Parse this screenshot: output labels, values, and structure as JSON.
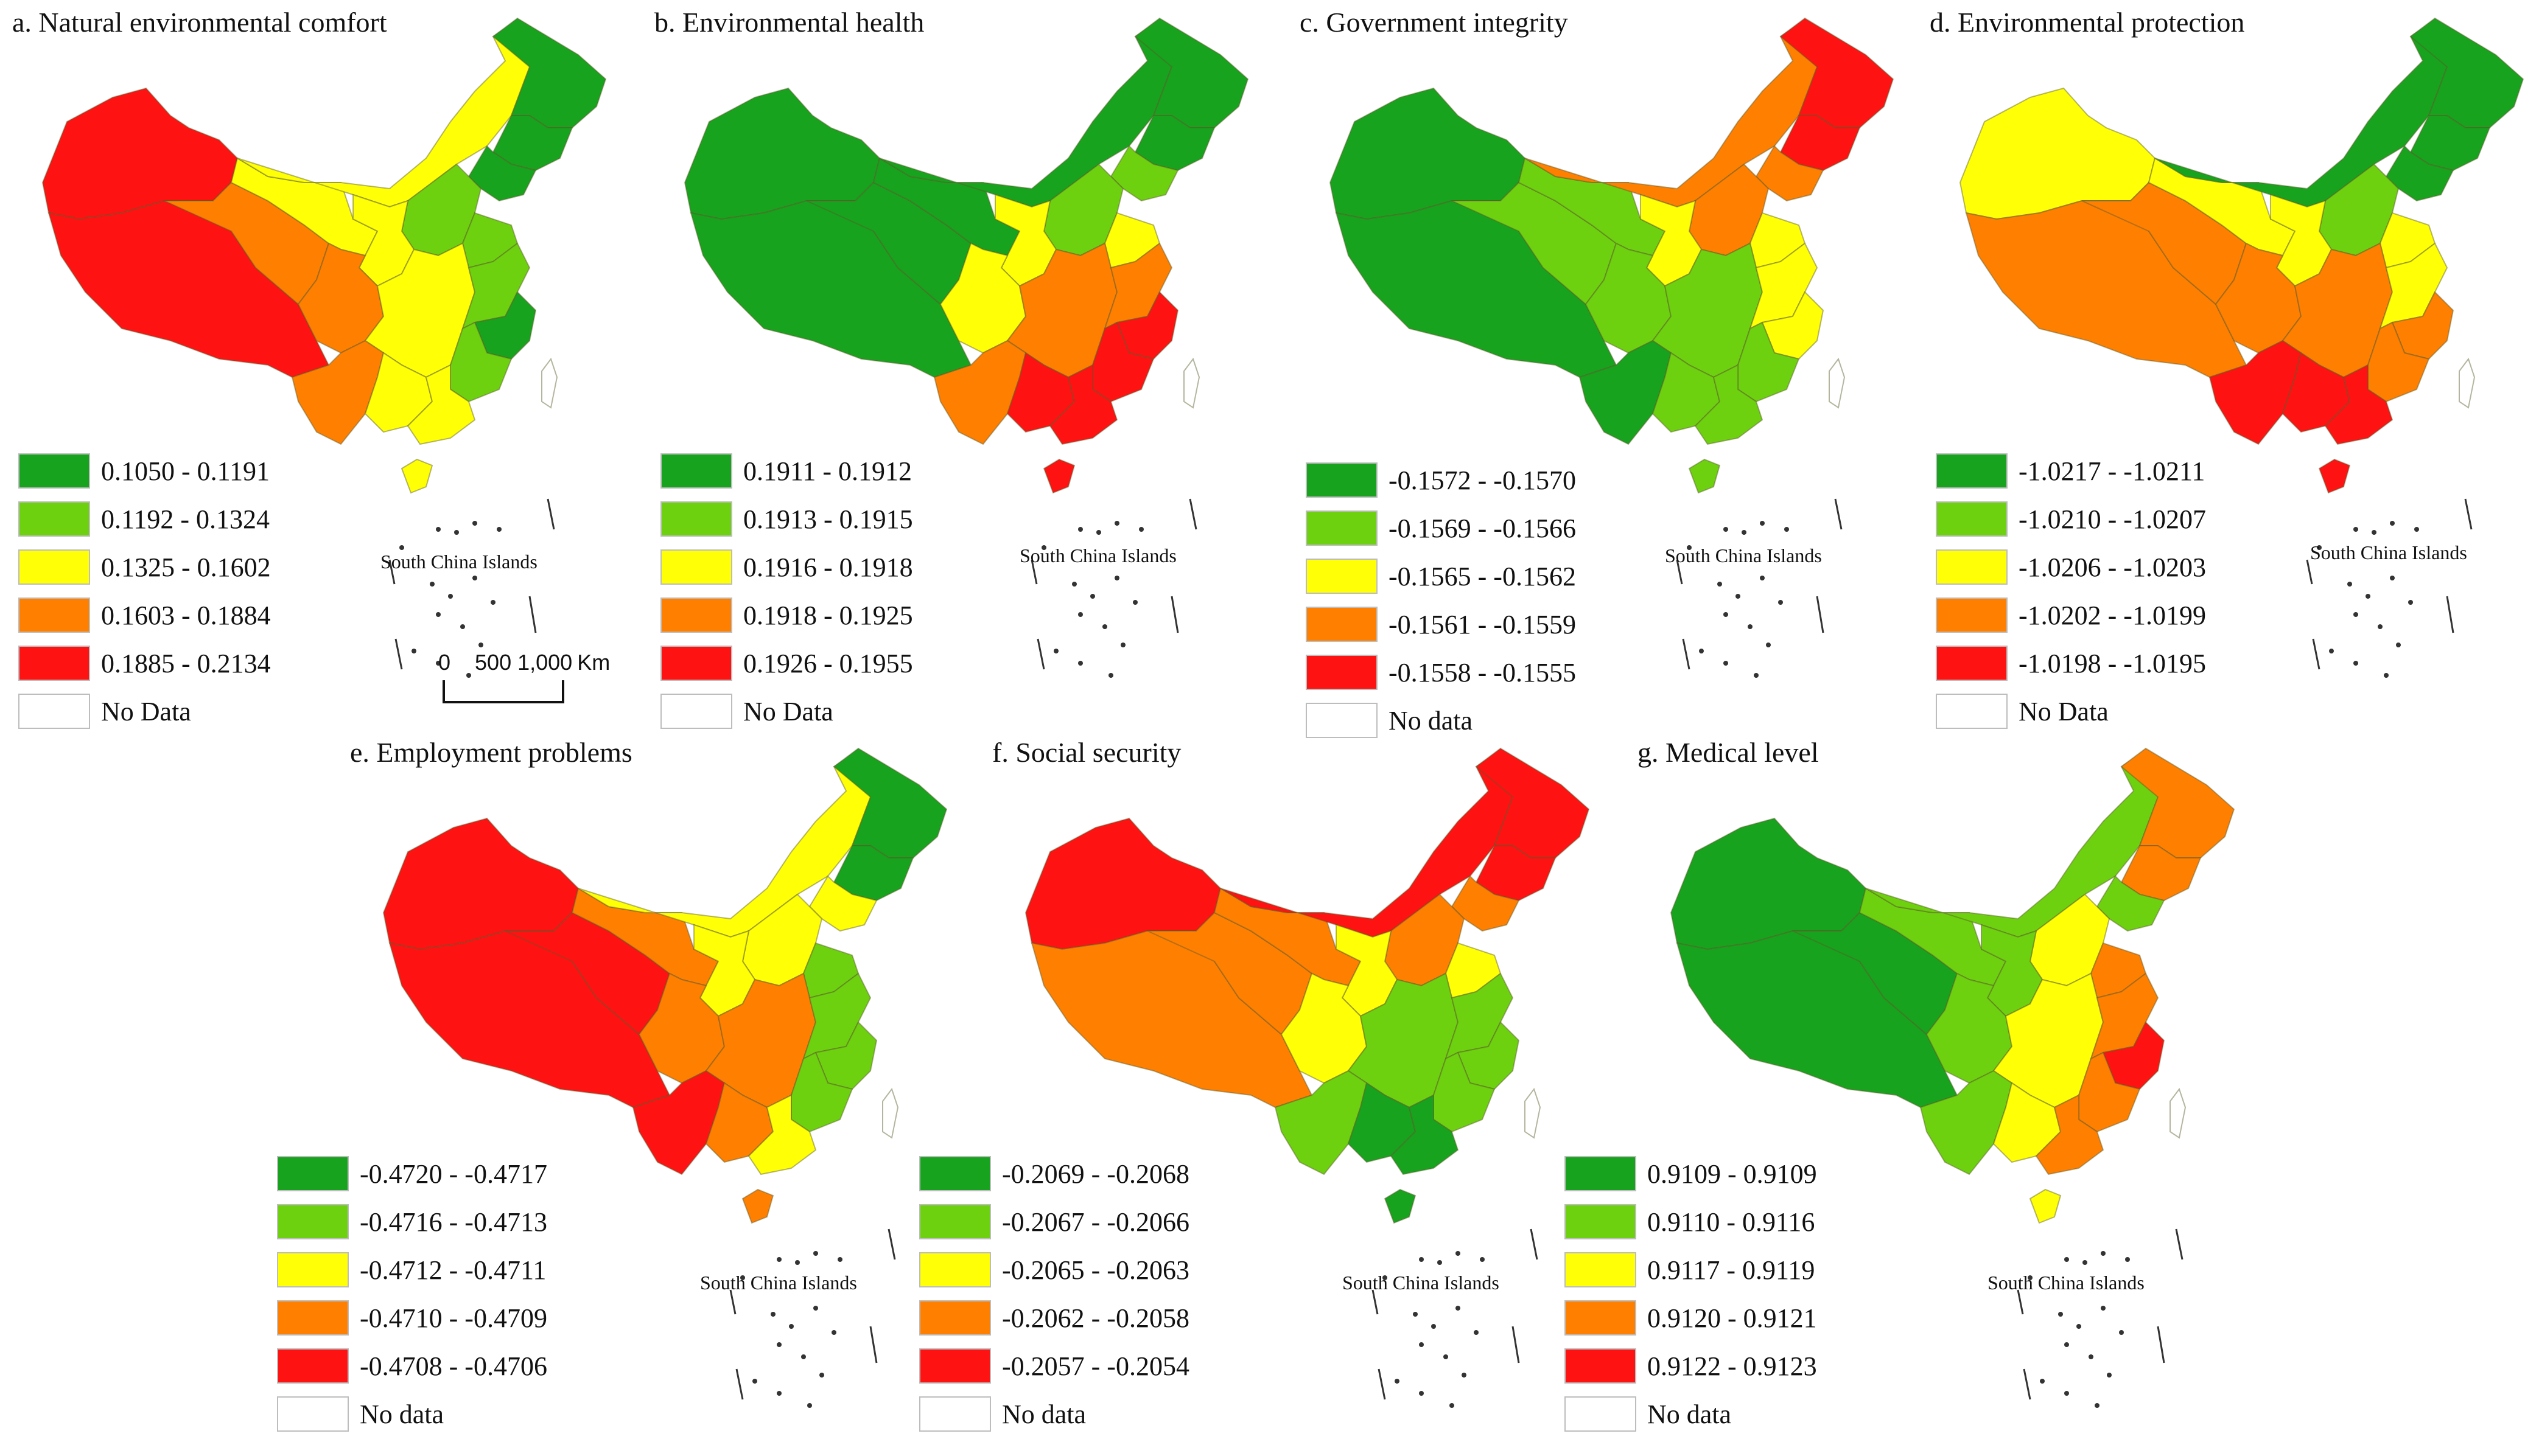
{
  "colors": {
    "dark_green": "#17a31d",
    "light_green": "#6dd10f",
    "yellow": "#ffff05",
    "orange": "#ff7f00",
    "red": "#ff1212",
    "no_data": "#ffffff",
    "boundary": "#5a5a2a"
  },
  "scale_bar": {
    "label_0": "0",
    "label_mid": "500 1,000",
    "unit": "Km"
  },
  "maps": [
    {
      "title": "a. Natural environmental comfort",
      "islands_label": "South China Islands",
      "legend": [
        {
          "label": "0.1050 - 0.1191",
          "color": "dark_green"
        },
        {
          "label": "0.1192 - 0.1324",
          "color": "light_green"
        },
        {
          "label": "0.1325 - 0.1602",
          "color": "yellow"
        },
        {
          "label": "0.1603 - 0.1884",
          "color": "orange"
        },
        {
          "label": "0.1885 - 0.2134",
          "color": "red"
        },
        {
          "label": "No Data",
          "color": "no_data"
        }
      ],
      "regions": {
        "xinjiang": "red",
        "tibet": "red",
        "qinghai": "orange",
        "gansu": "yellow",
        "inner_mongolia": "yellow",
        "heilongjiang": "dark_green",
        "jilin": "dark_green",
        "liaoning": "dark_green",
        "north_china": "light_green",
        "central_north": "yellow",
        "shandong": "light_green",
        "sichuan": "orange",
        "central": "yellow",
        "east_coast": "light_green",
        "zhejiang": "dark_green",
        "fujian": "light_green",
        "yunnan": "orange",
        "guangxi": "yellow",
        "guangdong": "yellow",
        "taiwan": "no_data",
        "hainan": "yellow"
      }
    },
    {
      "title": "b. Environmental health",
      "islands_label": "South China Islands",
      "legend": [
        {
          "label": "0.1911 - 0.1912",
          "color": "dark_green"
        },
        {
          "label": "0.1913 - 0.1915",
          "color": "light_green"
        },
        {
          "label": "0.1916 - 0.1918",
          "color": "yellow"
        },
        {
          "label": "0.1918 - 0.1925",
          "color": "orange"
        },
        {
          "label": "0.1926 - 0.1955",
          "color": "red"
        },
        {
          "label": "No Data",
          "color": "no_data"
        }
      ],
      "regions": {
        "xinjiang": "dark_green",
        "tibet": "dark_green",
        "qinghai": "dark_green",
        "gansu": "dark_green",
        "inner_mongolia": "dark_green",
        "heilongjiang": "dark_green",
        "jilin": "dark_green",
        "liaoning": "light_green",
        "north_china": "light_green",
        "central_north": "yellow",
        "shandong": "yellow",
        "sichuan": "yellow",
        "central": "orange",
        "east_coast": "orange",
        "zhejiang": "red",
        "fujian": "red",
        "yunnan": "orange",
        "guangxi": "red",
        "guangdong": "red",
        "taiwan": "no_data",
        "hainan": "red"
      }
    },
    {
      "title": "c. Government integrity",
      "islands_label": "South China Islands",
      "legend": [
        {
          "label": "-0.1572 - -0.1570",
          "color": "dark_green"
        },
        {
          "label": "-0.1569 - -0.1566",
          "color": "light_green"
        },
        {
          "label": "-0.1565 - -0.1562",
          "color": "yellow"
        },
        {
          "label": "-0.1561 - -0.1559",
          "color": "orange"
        },
        {
          "label": "-0.1558 - -0.1555",
          "color": "red"
        },
        {
          "label": "No data",
          "color": "no_data"
        }
      ],
      "regions": {
        "xinjiang": "dark_green",
        "tibet": "dark_green",
        "qinghai": "light_green",
        "gansu": "light_green",
        "inner_mongolia": "orange",
        "heilongjiang": "red",
        "jilin": "red",
        "liaoning": "orange",
        "north_china": "orange",
        "central_north": "yellow",
        "shandong": "yellow",
        "sichuan": "light_green",
        "central": "light_green",
        "east_coast": "yellow",
        "zhejiang": "yellow",
        "fujian": "light_green",
        "yunnan": "dark_green",
        "guangxi": "light_green",
        "guangdong": "light_green",
        "taiwan": "no_data",
        "hainan": "light_green"
      }
    },
    {
      "title": "d. Environmental protection",
      "islands_label": "South China Islands",
      "legend": [
        {
          "label": "-1.0217 - -1.0211",
          "color": "dark_green"
        },
        {
          "label": "-1.0210 - -1.0207",
          "color": "light_green"
        },
        {
          "label": "-1.0206 - -1.0203",
          "color": "yellow"
        },
        {
          "label": "-1.0202 - -1.0199",
          "color": "orange"
        },
        {
          "label": "-1.0198 - -1.0195",
          "color": "red"
        },
        {
          "label": "No Data",
          "color": "no_data"
        }
      ],
      "regions": {
        "xinjiang": "yellow",
        "tibet": "orange",
        "qinghai": "orange",
        "gansu": "yellow",
        "inner_mongolia": "dark_green",
        "heilongjiang": "dark_green",
        "jilin": "dark_green",
        "liaoning": "dark_green",
        "north_china": "light_green",
        "central_north": "yellow",
        "shandong": "yellow",
        "sichuan": "orange",
        "central": "orange",
        "east_coast": "yellow",
        "zhejiang": "orange",
        "fujian": "orange",
        "yunnan": "red",
        "guangxi": "red",
        "guangdong": "red",
        "taiwan": "no_data",
        "hainan": "red"
      }
    },
    {
      "title": "e. Employment problems",
      "islands_label": "South China Islands",
      "legend": [
        {
          "label": "-0.4720 - -0.4717",
          "color": "dark_green"
        },
        {
          "label": "-0.4716 - -0.4713",
          "color": "light_green"
        },
        {
          "label": "-0.4712 - -0.4711",
          "color": "yellow"
        },
        {
          "label": "-0.4710 - -0.4709",
          "color": "orange"
        },
        {
          "label": "-0.4708 - -0.4706",
          "color": "red"
        },
        {
          "label": "No data",
          "color": "no_data"
        }
      ],
      "regions": {
        "xinjiang": "red",
        "tibet": "red",
        "qinghai": "red",
        "gansu": "orange",
        "inner_mongolia": "yellow",
        "heilongjiang": "dark_green",
        "jilin": "dark_green",
        "liaoning": "yellow",
        "north_china": "yellow",
        "central_north": "yellow",
        "shandong": "light_green",
        "sichuan": "orange",
        "central": "orange",
        "east_coast": "light_green",
        "zhejiang": "light_green",
        "fujian": "light_green",
        "yunnan": "red",
        "guangxi": "orange",
        "guangdong": "yellow",
        "taiwan": "no_data",
        "hainan": "orange"
      }
    },
    {
      "title": "f. Social security",
      "islands_label": "South China Islands",
      "legend": [
        {
          "label": "-0.2069 - -0.2068",
          "color": "dark_green"
        },
        {
          "label": "-0.2067 - -0.2066",
          "color": "light_green"
        },
        {
          "label": "-0.2065 - -0.2063",
          "color": "yellow"
        },
        {
          "label": "-0.2062 - -0.2058",
          "color": "orange"
        },
        {
          "label": "-0.2057 - -0.2054",
          "color": "red"
        },
        {
          "label": "No data",
          "color": "no_data"
        }
      ],
      "regions": {
        "xinjiang": "red",
        "tibet": "orange",
        "qinghai": "orange",
        "gansu": "orange",
        "inner_mongolia": "red",
        "heilongjiang": "red",
        "jilin": "red",
        "liaoning": "orange",
        "north_china": "orange",
        "central_north": "yellow",
        "shandong": "yellow",
        "sichuan": "yellow",
        "central": "light_green",
        "east_coast": "light_green",
        "zhejiang": "light_green",
        "fujian": "light_green",
        "yunnan": "light_green",
        "guangxi": "dark_green",
        "guangdong": "dark_green",
        "taiwan": "no_data",
        "hainan": "dark_green"
      }
    },
    {
      "title": "g. Medical level",
      "islands_label": "South China Islands",
      "legend": [
        {
          "label": "0.9109 - 0.9109",
          "color": "dark_green"
        },
        {
          "label": "0.9110 - 0.9116",
          "color": "light_green"
        },
        {
          "label": "0.9117 - 0.9119",
          "color": "yellow"
        },
        {
          "label": "0.9120 - 0.9121",
          "color": "orange"
        },
        {
          "label": "0.9122 - 0.9123",
          "color": "red"
        },
        {
          "label": "No data",
          "color": "no_data"
        }
      ],
      "regions": {
        "xinjiang": "dark_green",
        "tibet": "dark_green",
        "qinghai": "dark_green",
        "gansu": "light_green",
        "inner_mongolia": "light_green",
        "heilongjiang": "orange",
        "jilin": "orange",
        "liaoning": "light_green",
        "north_china": "yellow",
        "central_north": "light_green",
        "shandong": "orange",
        "sichuan": "light_green",
        "central": "yellow",
        "east_coast": "orange",
        "zhejiang": "red",
        "fujian": "orange",
        "yunnan": "light_green",
        "guangxi": "yellow",
        "guangdong": "orange",
        "taiwan": "no_data",
        "hainan": "yellow"
      }
    }
  ]
}
